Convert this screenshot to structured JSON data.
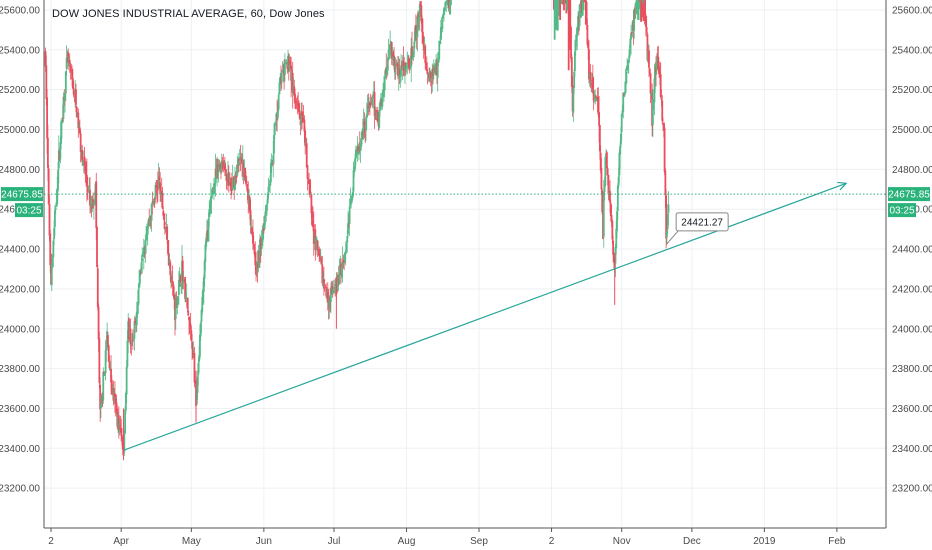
{
  "chart_title": "DOW JONES INDUSTRIAL AVERAGE, 60, Dow Jones",
  "colors": {
    "up": "#53b987",
    "down": "#eb4d5c",
    "trendline": "#26a69a",
    "last_price": "#2ab27b",
    "grid": "#eef0f3",
    "axis": "#555555"
  },
  "chart_data": {
    "type": "candlestick",
    "title": "DOW JONES INDUSTRIAL AVERAGE, 60, Dow Jones",
    "ylim": [
      23000,
      25650
    ],
    "y_ticks": [
      23200,
      23400,
      23600,
      23800,
      24000,
      24200,
      24400,
      24600,
      24800,
      25000,
      25200,
      25400,
      25600
    ],
    "y_tick_labels": [
      "23200.00",
      "23400.00",
      "23600.00",
      "23800.00",
      "24000.00",
      "24200.00",
      "24400.00",
      "24600.00",
      "24800.00",
      "25000.00",
      "25200.00",
      "25400.00",
      "25600.00"
    ],
    "x_ticks": [
      {
        "label": "2",
        "date": "2018-03-02"
      },
      {
        "label": "Apr",
        "date": "2018-04-01"
      },
      {
        "label": "May",
        "date": "2018-05-01"
      },
      {
        "label": "Jun",
        "date": "2018-06-01"
      },
      {
        "label": "Jul",
        "date": "2018-07-01"
      },
      {
        "label": "Aug",
        "date": "2018-08-01"
      },
      {
        "label": "Sep",
        "date": "2018-09-01"
      },
      {
        "label": "2",
        "date": "2018-10-02"
      },
      {
        "label": "Nov",
        "date": "2018-11-01"
      },
      {
        "label": "Dec",
        "date": "2018-12-01"
      },
      {
        "label": "2019",
        "date": "2019-01-01"
      },
      {
        "label": "Feb",
        "date": "2019-02-01"
      }
    ],
    "price_path": [
      [
        "2018-02-27",
        25450
      ],
      [
        "2018-02-28",
        25200
      ],
      [
        "2018-03-01",
        24600
      ],
      [
        "2018-03-02",
        24250
      ],
      [
        "2018-03-05",
        24800
      ],
      [
        "2018-03-07",
        25100
      ],
      [
        "2018-03-09",
        25350
      ],
      [
        "2018-03-12",
        25180
      ],
      [
        "2018-03-15",
        24900
      ],
      [
        "2018-03-19",
        24600
      ],
      [
        "2018-03-21",
        24700
      ],
      [
        "2018-03-22",
        24100
      ],
      [
        "2018-03-23",
        23550
      ],
      [
        "2018-03-26",
        23950
      ],
      [
        "2018-03-28",
        23700
      ],
      [
        "2018-04-02",
        23400
      ],
      [
        "2018-04-04",
        24000
      ],
      [
        "2018-04-06",
        23900
      ],
      [
        "2018-04-10",
        24400
      ],
      [
        "2018-04-13",
        24550
      ],
      [
        "2018-04-17",
        24750
      ],
      [
        "2018-04-20",
        24500
      ],
      [
        "2018-04-24",
        24100
      ],
      [
        "2018-04-27",
        24300
      ],
      [
        "2018-05-02",
        23850
      ],
      [
        "2018-05-03",
        23600
      ],
      [
        "2018-05-07",
        24400
      ],
      [
        "2018-05-10",
        24700
      ],
      [
        "2018-05-14",
        24850
      ],
      [
        "2018-05-18",
        24700
      ],
      [
        "2018-05-22",
        24850
      ],
      [
        "2018-05-25",
        24700
      ],
      [
        "2018-05-29",
        24300
      ],
      [
        "2018-05-31",
        24450
      ],
      [
        "2018-06-04",
        24800
      ],
      [
        "2018-06-08",
        25250
      ],
      [
        "2018-06-12",
        25350
      ],
      [
        "2018-06-14",
        25150
      ],
      [
        "2018-06-18",
        25000
      ],
      [
        "2018-06-22",
        24500
      ],
      [
        "2018-06-28",
        24150
      ],
      [
        "2018-07-02",
        24200
      ],
      [
        "2018-07-06",
        24400
      ],
      [
        "2018-07-10",
        24850
      ],
      [
        "2018-07-13",
        25000
      ],
      [
        "2018-07-17",
        25150
      ],
      [
        "2018-07-20",
        25050
      ],
      [
        "2018-07-25",
        25450
      ],
      [
        "2018-07-27",
        25300
      ],
      [
        "2018-08-02",
        25300
      ],
      [
        "2018-08-07",
        25600
      ],
      [
        "2018-08-10",
        25250
      ],
      [
        "2018-08-14",
        25300
      ],
      [
        "2018-08-16",
        25550
      ],
      [
        "2018-08-20",
        25700
      ]
    ],
    "gap": [
      "2018-08-21",
      "2018-10-02"
    ],
    "price_path_2": [
      [
        "2018-10-03",
        25750
      ],
      [
        "2018-10-05",
        26400
      ],
      [
        "2018-10-09",
        26250
      ],
      [
        "2018-10-10",
        25500
      ],
      [
        "2018-10-11",
        25100
      ],
      [
        "2018-10-12",
        25400
      ],
      [
        "2018-10-16",
        25800
      ],
      [
        "2018-10-18",
        25300
      ],
      [
        "2018-10-22",
        25100
      ],
      [
        "2018-10-24",
        24500
      ],
      [
        "2018-10-25",
        24900
      ],
      [
        "2018-10-29",
        24300
      ],
      [
        "2018-10-30",
        24600
      ],
      [
        "2018-11-01",
        25100
      ],
      [
        "2018-11-05",
        25450
      ],
      [
        "2018-11-07",
        25650
      ],
      [
        "2018-11-09",
        25950
      ],
      [
        "2018-11-12",
        25400
      ],
      [
        "2018-11-13",
        25300
      ],
      [
        "2018-11-14",
        25050
      ],
      [
        "2018-11-16",
        25400
      ],
      [
        "2018-11-19",
        25000
      ],
      [
        "2018-11-20",
        24450
      ],
      [
        "2018-11-21",
        24650
      ]
    ],
    "extremes": [
      {
        "date": "2018-04-02",
        "low": 23340
      },
      {
        "date": "2018-05-03",
        "low": 23530
      },
      {
        "date": "2018-07-02",
        "low": 24000
      },
      {
        "date": "2018-10-29",
        "low": 24120
      }
    ],
    "trendline": {
      "start": [
        "2018-04-02",
        23390
      ],
      "end": [
        "2019-02-05",
        24730
      ]
    },
    "callout": {
      "label": "24421.27",
      "value": 24421.27,
      "anchor_date": "2018-11-20"
    },
    "last_price": {
      "value": 24675.85,
      "label": "24675.85",
      "countdown": "03:25"
    }
  }
}
